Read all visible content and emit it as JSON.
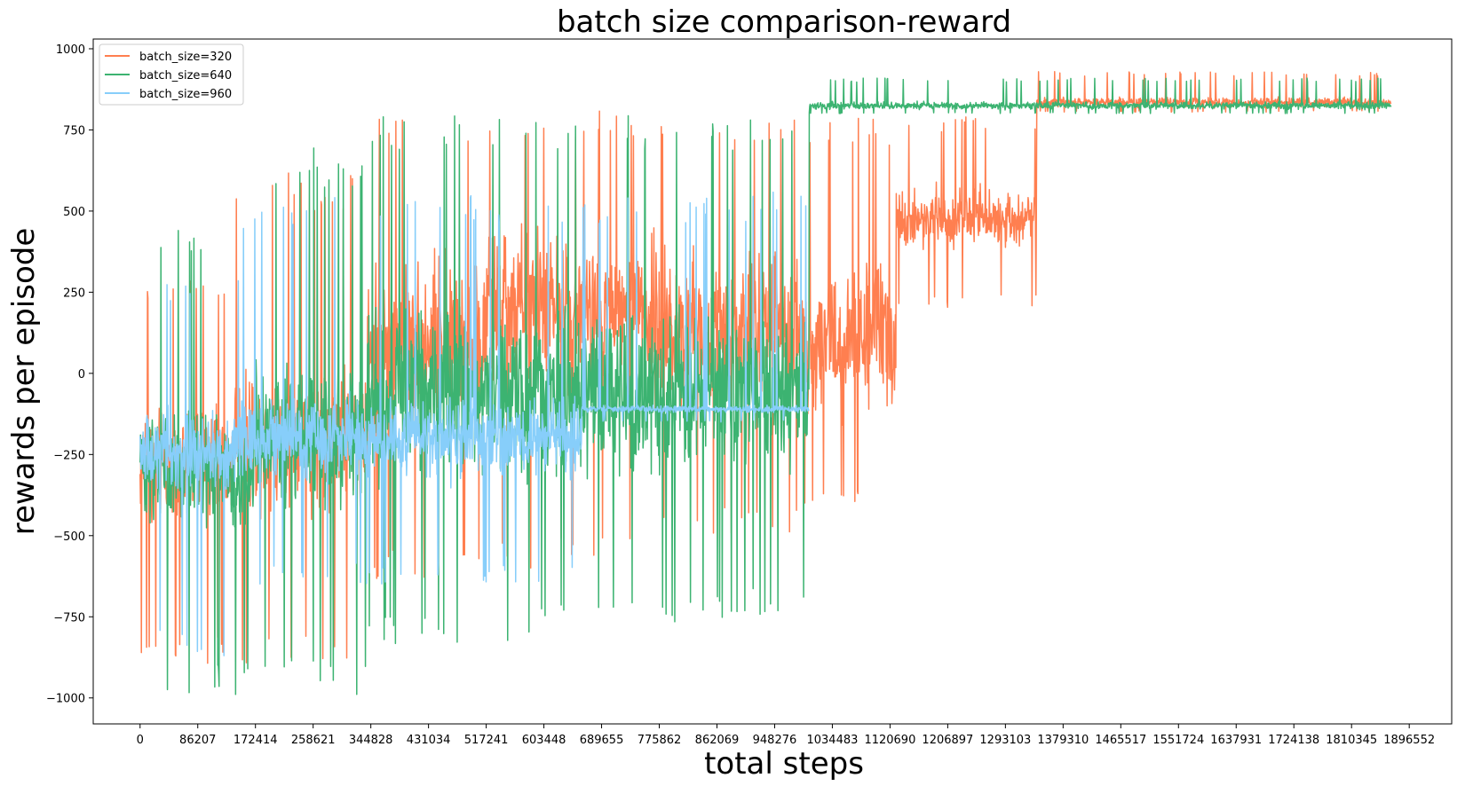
{
  "chart_data": {
    "type": "line",
    "title": "batch size comparison-reward",
    "xlabel": "total steps",
    "ylabel": "rewards per episode",
    "xlim": [
      -70000,
      1960000
    ],
    "ylim": [
      -1080,
      1030
    ],
    "xticks": [
      0,
      86207,
      172414,
      258621,
      344828,
      431034,
      517241,
      603448,
      689655,
      775862,
      862069,
      948276,
      1034483,
      1120690,
      1206897,
      1293103,
      1379310,
      1465517,
      1551724,
      1637931,
      1724138,
      1810345,
      1896552
    ],
    "yticks": [
      1000,
      750,
      500,
      250,
      0,
      -250,
      -500,
      -750,
      -1000
    ],
    "legend_position": "top-left",
    "grid": false,
    "series": [
      {
        "name": "batch_size=320",
        "color": "#ff7f50",
        "segments": [
          {
            "x_start": 0,
            "x_end": 140000,
            "center": -280,
            "spread": 230,
            "min": -900,
            "max": 300
          },
          {
            "x_start": 140000,
            "x_end": 340000,
            "center": -200,
            "spread": 280,
            "min": -900,
            "max": 620
          },
          {
            "x_start": 340000,
            "x_end": 520000,
            "center": 100,
            "spread": 340,
            "min": -650,
            "max": 800
          },
          {
            "x_start": 520000,
            "x_end": 760000,
            "center": 200,
            "spread": 320,
            "min": -600,
            "max": 820
          },
          {
            "x_start": 760000,
            "x_end": 990000,
            "center": 150,
            "spread": 330,
            "min": -500,
            "max": 800
          },
          {
            "x_start": 990000,
            "x_end": 1130000,
            "center": 100,
            "spread": 300,
            "min": -410,
            "max": 790
          },
          {
            "x_start": 1130000,
            "x_end": 1340000,
            "center": 480,
            "spread": 120,
            "min": 200,
            "max": 790
          },
          {
            "x_start": 1340000,
            "x_end": 1870000,
            "center": 835,
            "spread": 20,
            "min": 805,
            "max": 930
          }
        ]
      },
      {
        "name": "batch_size=640",
        "color": "#3cb371",
        "segments": [
          {
            "x_start": 0,
            "x_end": 170000,
            "center": -300,
            "spread": 250,
            "min": -990,
            "max": 490
          },
          {
            "x_start": 170000,
            "x_end": 340000,
            "center": -200,
            "spread": 300,
            "min": -990,
            "max": 700
          },
          {
            "x_start": 340000,
            "x_end": 600000,
            "center": -50,
            "spread": 340,
            "min": -860,
            "max": 810
          },
          {
            "x_start": 600000,
            "x_end": 1000000,
            "center": -50,
            "spread": 330,
            "min": -770,
            "max": 800
          },
          {
            "x_start": 1000000,
            "x_end": 1870000,
            "center": 825,
            "spread": 15,
            "min": 800,
            "max": 910
          }
        ]
      },
      {
        "name": "batch_size=960",
        "color": "#87cefa",
        "segments": [
          {
            "x_start": 0,
            "x_end": 150000,
            "center": -250,
            "spread": 170,
            "min": -870,
            "max": 300
          },
          {
            "x_start": 150000,
            "x_end": 660000,
            "center": -200,
            "spread": 160,
            "min": -650,
            "max": 550
          },
          {
            "x_start": 660000,
            "x_end": 1000000,
            "center": -110,
            "spread": 15,
            "min": -150,
            "max": 560
          }
        ]
      }
    ]
  }
}
